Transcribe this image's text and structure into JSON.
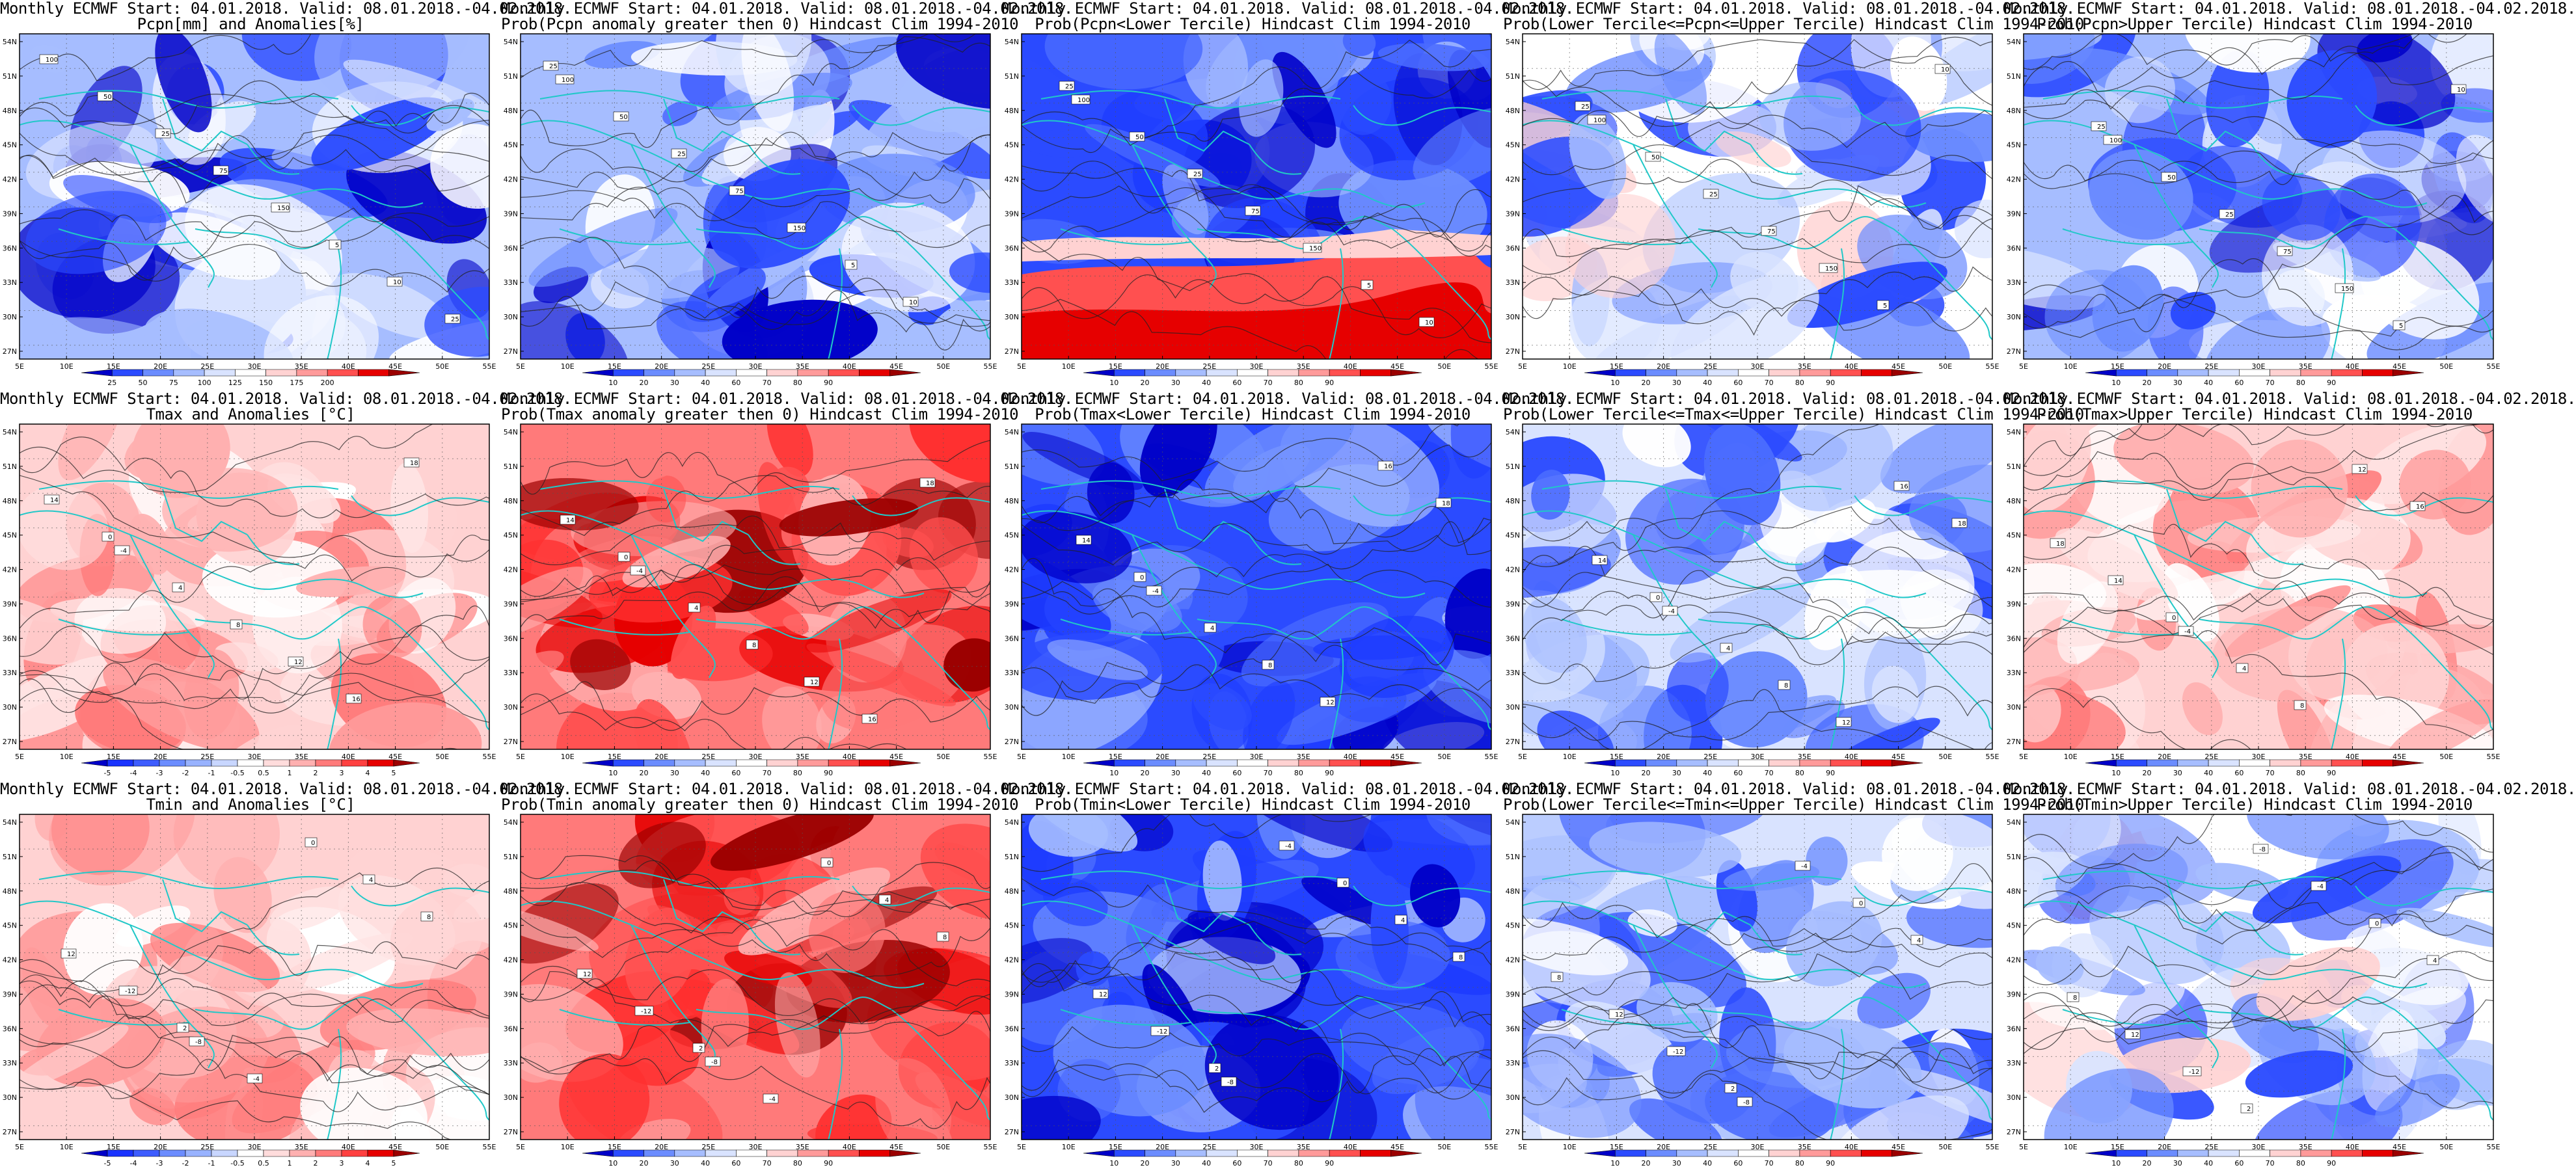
{
  "panels": [
    {
      "title1": "Monthly ECMWF Start: 04.01.2018. Valid: 08.01.2018.-04.02.2018.",
      "title2": "Pcpn[mm] and Anomalies[%]",
      "scale": "pcpn_anom",
      "pattern": "mixed",
      "labels": [
        "100",
        "50",
        "25",
        "75",
        "150",
        "5",
        "10",
        "25"
      ]
    },
    {
      "title1": "Monthly ECMWF Start: 04.01.2018. Valid: 08.01.2018.-04.02.2018.",
      "title2": "Prob(Pcpn anomaly greater then 0) Hindcast Clim 1994-2010",
      "scale": "prob",
      "pattern": "mixed",
      "labels": [
        "100",
        "50",
        "25",
        "75",
        "150",
        "5",
        "10",
        "25"
      ]
    },
    {
      "title1": "Monthly ECMWF Start: 04.01.2018. Valid: 08.01.2018.-04.02.2018.",
      "title2": "Prob(Pcpn<Lower Tercile) Hindcast Clim 1994-2010",
      "scale": "prob",
      "pattern": "blue_redsouth",
      "labels": [
        "100",
        "50",
        "25",
        "75",
        "150",
        "5",
        "10",
        "25"
      ]
    },
    {
      "title1": "Monthly ECMWF Start: 04.01.2018. Valid: 08.01.2018.-04.02.2018.",
      "title2": "Prob(Lower Tercile<=Pcpn<=Upper Tercile) Hindcast Clim 1994-2010",
      "scale": "prob",
      "pattern": "lightmix",
      "labels": [
        "100",
        "50",
        "25",
        "75",
        "150",
        "5",
        "10",
        "25"
      ]
    },
    {
      "title1": "Monthly ECMWF Start: 04.01.2018. Valid: 08.01.2018.-04.02.2018.",
      "title2": "Prob(Pcpn>Upper Tercile) Hindcast Clim 1994-2010",
      "scale": "prob",
      "pattern": "mixed",
      "labels": [
        "100",
        "50",
        "25",
        "75",
        "150",
        "5",
        "10",
        "25"
      ]
    },
    {
      "title1": "Monthly ECMWF Start: 04.01.2018. Valid: 08.01.2018.-04.02.2018.",
      "title2": "Tmax and Anomalies [°C]",
      "scale": "temp_anom",
      "pattern": "red_light",
      "labels": [
        "-4",
        "4",
        "8",
        "12",
        "16",
        "18",
        "14",
        "0"
      ]
    },
    {
      "title1": "Monthly ECMWF Start: 04.01.2018. Valid: 08.01.2018.-04.02.2018.",
      "title2": "Prob(Tmax anomaly greater then 0) Hindcast Clim 1994-2010",
      "scale": "prob",
      "pattern": "red",
      "labels": [
        "-4",
        "4",
        "8",
        "12",
        "16",
        "18",
        "14",
        "0"
      ]
    },
    {
      "title1": "Monthly ECMWF Start: 04.01.2018. Valid: 08.01.2018.-04.02.2018.",
      "title2": "Prob(Tmax<Lower Tercile) Hindcast Clim 1994-2010",
      "scale": "prob",
      "pattern": "blue",
      "labels": [
        "-4",
        "4",
        "8",
        "12",
        "16",
        "18",
        "14",
        "0"
      ]
    },
    {
      "title1": "Monthly ECMWF Start: 04.01.2018. Valid: 08.01.2018.-04.02.2018.",
      "title2": "Prob(Lower Tercile<=Tmax<=Upper Tercile) Hindcast Clim 1994-2010",
      "scale": "prob",
      "pattern": "blue_light",
      "labels": [
        "-4",
        "4",
        "8",
        "12",
        "16",
        "18",
        "14",
        "0"
      ]
    },
    {
      "title1": "Monthly ECMWF Start: 04.01.2018. Valid: 08.01.2018.-04.02.2018.",
      "title2": "Prob(Tmax>Upper Tercile) Hindcast Clim 1994-2010",
      "scale": "prob",
      "pattern": "red_light",
      "labels": [
        "-4",
        "4",
        "8",
        "12",
        "16",
        "18",
        "14",
        "0"
      ]
    },
    {
      "title1": "Monthly ECMWF Start: 04.01.2018. Valid: 08.01.2018.-04.02.2018.",
      "title2": "Tmin and Anomalies [°C]",
      "scale": "temp_anom",
      "pattern": "red_light",
      "labels": [
        "-8",
        "-4",
        "0",
        "4",
        "8",
        "12",
        "-12",
        "2"
      ]
    },
    {
      "title1": "Monthly ECMWF Start: 04.01.2018. Valid: 08.01.2018.-04.02.2018.",
      "title2": "Prob(Tmin anomaly greater then 0) Hindcast Clim 1994-2010",
      "scale": "prob",
      "pattern": "red",
      "labels": [
        "-8",
        "-4",
        "0",
        "4",
        "8",
        "12",
        "-12",
        "2"
      ]
    },
    {
      "title1": "Monthly ECMWF Start: 04.01.2018. Valid: 08.01.2018.-04.02.2018.",
      "title2": "Prob(Tmin<Lower Tercile) Hindcast Clim 1994-2010",
      "scale": "prob",
      "pattern": "blue",
      "labels": [
        "-8",
        "-4",
        "0",
        "4",
        "8",
        "12",
        "-12",
        "2"
      ]
    },
    {
      "title1": "Monthly ECMWF Start: 04.01.2018. Valid: 08.01.2018.-04.02.2018.",
      "title2": "Prob(Lower Tercile<=Tmin<=Upper Tercile) Hindcast Clim 1994-2010",
      "scale": "prob",
      "pattern": "blue_light",
      "labels": [
        "-8",
        "-4",
        "0",
        "4",
        "8",
        "12",
        "-12",
        "2"
      ]
    },
    {
      "title1": "Monthly ECMWF Start: 04.01.2018. Valid: 08.01.2018.-04.02.2018.",
      "title2": "Prob(Tmin>Upper Tercile) Hindcast Clim 1994-2010",
      "scale": "prob",
      "pattern": "lightmix",
      "labels": [
        "-8",
        "-4",
        "0",
        "4",
        "8",
        "12",
        "-12",
        "2"
      ]
    }
  ],
  "axes": {
    "lon_labels": [
      "5E",
      "10E",
      "15E",
      "20E",
      "25E",
      "30E",
      "35E",
      "40E",
      "45E",
      "50E",
      "55E"
    ],
    "lat_labels": [
      "54N",
      "51N",
      "48N",
      "45N",
      "42N",
      "39N",
      "36N",
      "33N",
      "30N",
      "27N"
    ]
  },
  "scales": {
    "pcpn_anom": {
      "labels": [
        "25",
        "50",
        "75",
        "100",
        "125",
        "150",
        "175",
        "200"
      ],
      "colors": [
        "#0000c8",
        "#2b4bff",
        "#6b8cff",
        "#a6bdff",
        "#d9e3ff",
        "#ffffff",
        "#ffd2d2",
        "#ff9a9a",
        "#ff5050",
        "#e60000",
        "#9b0000"
      ]
    },
    "prob": {
      "labels": [
        "10",
        "20",
        "30",
        "40",
        "60",
        "70",
        "80",
        "90"
      ],
      "colors": [
        "#0000c8",
        "#2b4bff",
        "#6b8cff",
        "#a6bdff",
        "#d9e3ff",
        "#ffffff",
        "#ffd2d2",
        "#ff9a9a",
        "#ff5050",
        "#e60000",
        "#9b0000"
      ]
    },
    "temp_anom": {
      "labels": [
        "-5",
        "-4",
        "-3",
        "-2",
        "-1",
        "-0.5",
        "0.5",
        "1",
        "2",
        "3",
        "4",
        "5"
      ],
      "colors": [
        "#0000c8",
        "#1a33ff",
        "#3d5cff",
        "#6b8cff",
        "#98b2ff",
        "#c8d6ff",
        "#ffffff",
        "#ffdcdc",
        "#ffb0b0",
        "#ff7a7a",
        "#ff4040",
        "#e60000",
        "#9b0000"
      ]
    }
  },
  "colors": {
    "coast": "#20c8c8",
    "contour": "#222222",
    "frame": "#000000"
  }
}
